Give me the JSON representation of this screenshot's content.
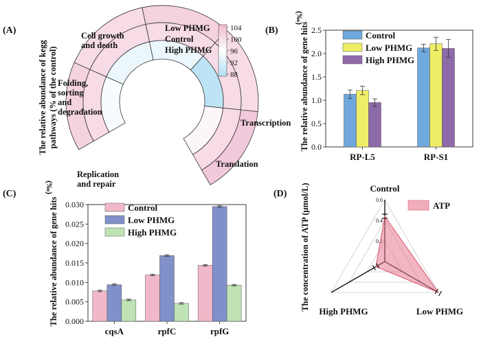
{
  "figure": {
    "panel_labels": [
      "(A)",
      "(B)",
      "(C)",
      "(D)"
    ]
  },
  "chart_data": [
    {
      "panel": "(A)",
      "type": "heatmap",
      "ylabel": "The relative abundance of kegg pathways (% of the control)",
      "rings": [
        "Low PHMG",
        "Control",
        "High PHMG"
      ],
      "categories": [
        "Cell growth and death",
        "Folding, sorting and degradation",
        "Replication and repair",
        "Translation",
        "Transcription"
      ],
      "category_labels": [
        [
          "Cell growth",
          "and death"
        ],
        [
          "Folding,",
          "sorting",
          "and",
          "degradation"
        ],
        [
          "Replication",
          "and repair"
        ],
        [
          "Translation"
        ],
        [
          "Transcription"
        ]
      ],
      "values": {
        "Low PHMG": [
          101,
          100,
          101,
          100,
          102
        ],
        "Control": [
          100,
          100,
          100,
          100,
          100
        ],
        "High PHMG": [
          95,
          94,
          94,
          89,
          97
        ]
      },
      "colorbar": {
        "min": 88,
        "max": 104,
        "ticks": [
          "104",
          "100",
          "96",
          "92",
          "88"
        ],
        "low_color": "#b3dff2",
        "mid_color": "#ffffff",
        "high_color": "#eeb7cd"
      }
    },
    {
      "panel": "(B)",
      "type": "bar",
      "ylabel": "The relative abundance of gene hits (‰)",
      "categories": [
        "RP-L5",
        "RP-S1"
      ],
      "series": [
        {
          "name": "Control",
          "values": [
            1.13,
            2.12
          ],
          "errors": [
            0.09,
            0.08
          ],
          "color": "#6fa8dc"
        },
        {
          "name": "Low PHMG",
          "values": [
            1.21,
            2.21
          ],
          "errors": [
            0.09,
            0.14
          ],
          "color": "#eeee66"
        },
        {
          "name": "High PHMG",
          "values": [
            0.95,
            2.11
          ],
          "errors": [
            0.08,
            0.19
          ],
          "color": "#8e6aa8"
        }
      ],
      "ylim": [
        0,
        2.5
      ],
      "yticks": [
        "0.0",
        "0.5",
        "1.0",
        "1.5",
        "2.0",
        "2.5"
      ],
      "legend": "top-left"
    },
    {
      "panel": "(C)",
      "type": "bar",
      "ylabel": "The relative abundance of gene hits (‰)",
      "categories": [
        "cqsA",
        "rpfC",
        "rpfG"
      ],
      "series": [
        {
          "name": "Control",
          "values": [
            0.0078,
            0.0119,
            0.0144
          ],
          "errors": [
            0.0002,
            0.0002,
            0.0002
          ],
          "color": "#f0b8c8"
        },
        {
          "name": "Low PHMG",
          "values": [
            0.0094,
            0.0169,
            0.0295
          ],
          "errors": [
            0.0002,
            0.0002,
            0.0002
          ],
          "color": "#8090c8"
        },
        {
          "name": "High PHMG",
          "values": [
            0.0055,
            0.0046,
            0.0093
          ],
          "errors": [
            0.0002,
            0.0002,
            0.0002
          ],
          "color": "#bfe3b4"
        }
      ],
      "ylim": [
        0,
        0.03
      ],
      "yticks": [
        "0.000",
        "0.005",
        "0.010",
        "0.015",
        "0.020",
        "0.025",
        "0.030"
      ],
      "legend": "top-left"
    },
    {
      "panel": "(D)",
      "type": "radar",
      "ylabel": "The concentration of ATP (μmol/L)",
      "axes": [
        "Control",
        "Low PHMG",
        "High PHMG"
      ],
      "series": [
        {
          "name": "ATP",
          "values": [
            0.44,
            0.6,
            0.1
          ],
          "errors": [
            0.02,
            0.02,
            0.02
          ],
          "color": "#e8788f"
        }
      ],
      "rmax": 0.6,
      "rticks": [
        "0.2",
        "0.4",
        "0.6"
      ],
      "legend": "top-right"
    }
  ]
}
